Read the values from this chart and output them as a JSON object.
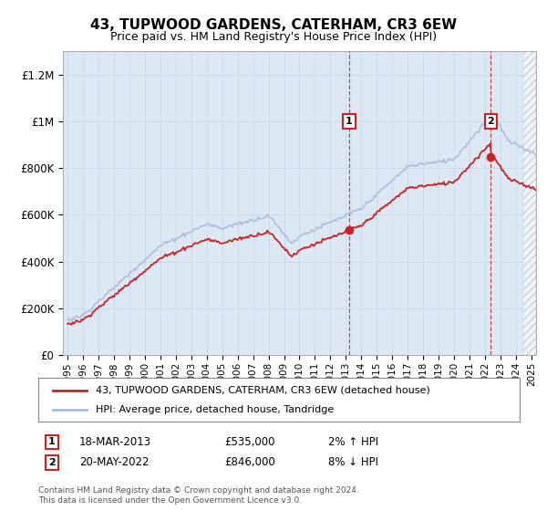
{
  "title": "43, TUPWOOD GARDENS, CATERHAM, CR3 6EW",
  "subtitle": "Price paid vs. HM Land Registry's House Price Index (HPI)",
  "legend_line1": "43, TUPWOOD GARDENS, CATERHAM, CR3 6EW (detached house)",
  "legend_line2": "HPI: Average price, detached house, Tandridge",
  "annotation1_date": "18-MAR-2013",
  "annotation1_price": "£535,000",
  "annotation1_hpi": "2% ↑ HPI",
  "annotation2_date": "20-MAY-2022",
  "annotation2_price": "£846,000",
  "annotation2_hpi": "8% ↓ HPI",
  "footer": "Contains HM Land Registry data © Crown copyright and database right 2024.\nThis data is licensed under the Open Government Licence v3.0.",
  "hpi_color": "#aabbdd",
  "price_color": "#cc2222",
  "annotation_color": "#cc2222",
  "bg_color": "#dde8f5",
  "grid_color": "#c8d8e8",
  "vline_color": "#cc2222",
  "ylim": [
    0,
    1300000
  ],
  "xlim_start": 1994.7,
  "xlim_end": 2025.3,
  "yticks": [
    0,
    200000,
    400000,
    600000,
    800000,
    1000000,
    1200000
  ],
  "ytick_labels": [
    "£0",
    "£200K",
    "£400K",
    "£600K",
    "£800K",
    "£1M",
    "£1.2M"
  ],
  "sale1_year": 2013.21,
  "sale1_price": 535000,
  "sale2_year": 2022.38,
  "sale2_price": 846000,
  "hatch_start": 2024.5
}
